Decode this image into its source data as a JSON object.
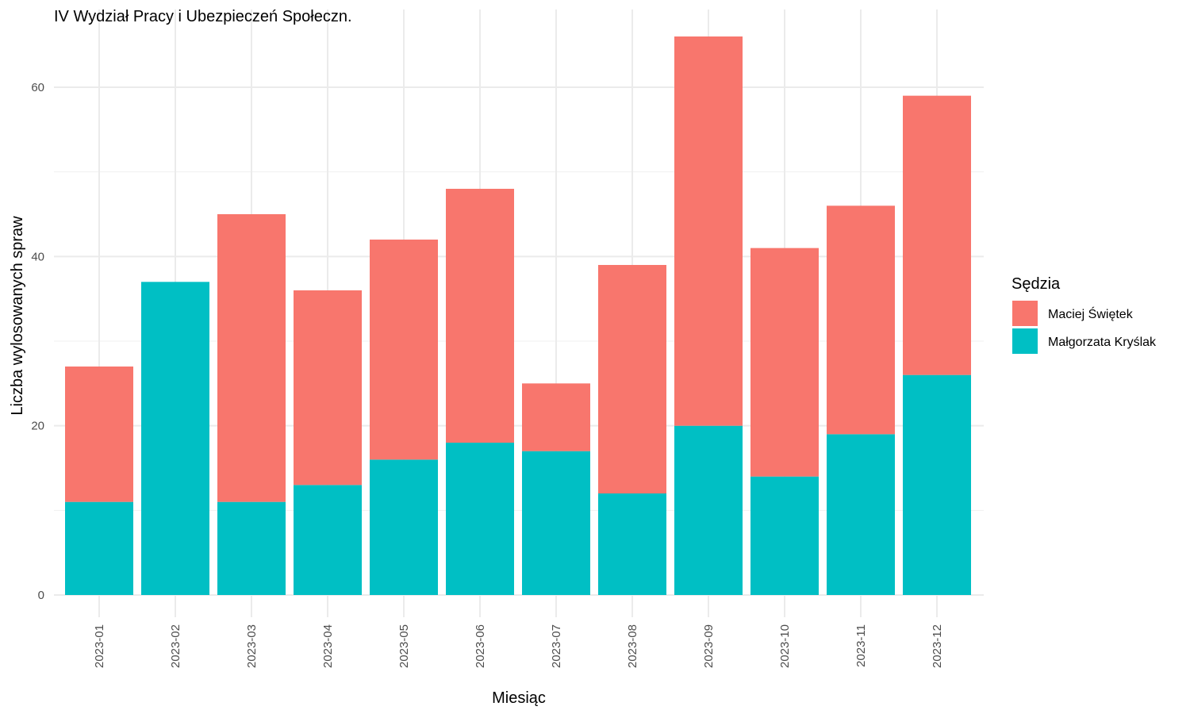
{
  "chart_data": {
    "type": "bar",
    "stacked": true,
    "title": "IV Wydział Pracy i Ubezpieczeń Społeczn.",
    "xlabel": "Miesiąc",
    "ylabel": "Liczba wylosowanych spraw",
    "ylim": [
      0,
      68
    ],
    "yticks": [
      0,
      20,
      40,
      60
    ],
    "grid": true,
    "legend_title": "Sędzia",
    "legend_position": "right",
    "categories": [
      "2023-01",
      "2023-02",
      "2023-03",
      "2023-04",
      "2023-05",
      "2023-06",
      "2023-07",
      "2023-08",
      "2023-09",
      "2023-10",
      "2023-11",
      "2023-12"
    ],
    "series": [
      {
        "name": "Małgorzata Kryślak",
        "color": "#00BFC4",
        "values": [
          11,
          37,
          11,
          13,
          16,
          18,
          17,
          12,
          20,
          14,
          19,
          26
        ]
      },
      {
        "name": "Maciej Świętek",
        "color": "#F8766D",
        "values": [
          16,
          0,
          34,
          23,
          26,
          30,
          8,
          27,
          46,
          27,
          27,
          33
        ]
      }
    ],
    "legend_order": [
      "Maciej Świętek",
      "Małgorzata Kryślak"
    ]
  }
}
